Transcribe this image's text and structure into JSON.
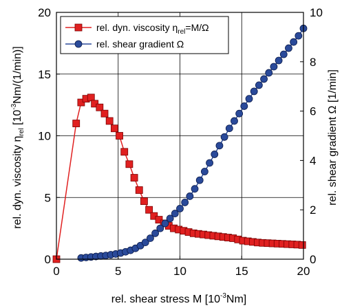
{
  "chart_data": {
    "type": "line",
    "title": "",
    "xlabel": {
      "pre": "rel. shear stress M [10",
      "sup": "-3",
      "post": "Nm]"
    },
    "ylabel_left": {
      "pre": "rel. dyn. viscosity η",
      "sub": "rel",
      "mid": " [10",
      "sup": "-3",
      "post": "Nm/(1/min)]"
    },
    "ylabel_right": "rel. shear gradient Ω [1/min]",
    "xlim": [
      0,
      20
    ],
    "ylim_left": [
      0,
      20
    ],
    "ylim_right": [
      0,
      10
    ],
    "xticks": [
      "0",
      "5",
      "10",
      "15",
      "20"
    ],
    "yticks_left": [
      "0",
      "5",
      "10",
      "15",
      "20"
    ],
    "yticks_right": [
      "0",
      "2",
      "4",
      "6",
      "8",
      "10"
    ],
    "grid": true,
    "legend_position": "top-left",
    "series": [
      {
        "name": {
          "pre": "rel. dyn. viscosity η",
          "sub": "rel",
          "post": "=M/Ω"
        },
        "axis": "left",
        "color": "#e02020",
        "marker": "square",
        "x": [
          0.0,
          1.6,
          2.0,
          2.4,
          2.8,
          3.1,
          3.5,
          3.9,
          4.3,
          4.7,
          5.1,
          5.5,
          5.9,
          6.3,
          6.7,
          7.1,
          7.5,
          7.9,
          8.3,
          8.7,
          9.1,
          9.5,
          9.9,
          10.3,
          10.7,
          11.1,
          11.5,
          11.9,
          12.3,
          12.7,
          13.1,
          13.5,
          13.9,
          14.3,
          14.7,
          15.1,
          15.5,
          15.9,
          16.3,
          16.7,
          17.1,
          17.5,
          17.9,
          18.3,
          18.7,
          19.1,
          19.5,
          19.9
        ],
        "y": [
          0.0,
          11.0,
          12.7,
          13.0,
          13.1,
          12.6,
          12.3,
          11.8,
          11.2,
          10.6,
          10.0,
          8.7,
          7.7,
          6.6,
          5.6,
          4.7,
          4.0,
          3.5,
          3.2,
          2.9,
          2.7,
          2.5,
          2.4,
          2.3,
          2.2,
          2.1,
          2.05,
          2.0,
          1.95,
          1.9,
          1.85,
          1.8,
          1.75,
          1.7,
          1.6,
          1.5,
          1.45,
          1.4,
          1.35,
          1.32,
          1.3,
          1.28,
          1.26,
          1.24,
          1.22,
          1.2,
          1.18,
          1.15
        ]
      },
      {
        "name": {
          "pre": "rel. shear gradient Ω",
          "sub": "",
          "post": ""
        },
        "axis": "right",
        "color": "#2a4a9a",
        "marker": "circle",
        "x": [
          2.0,
          2.4,
          2.8,
          3.2,
          3.6,
          4.0,
          4.4,
          4.8,
          5.2,
          5.6,
          6.0,
          6.4,
          6.8,
          7.2,
          7.6,
          8.0,
          8.4,
          8.8,
          9.2,
          9.6,
          10.0,
          10.4,
          10.8,
          11.2,
          11.6,
          12.0,
          12.4,
          12.8,
          13.2,
          13.6,
          14.0,
          14.4,
          14.8,
          15.2,
          15.6,
          16.0,
          16.4,
          16.8,
          17.2,
          17.6,
          18.0,
          18.4,
          18.8,
          19.2,
          19.6,
          20.0
        ],
        "y": [
          0.05,
          0.07,
          0.09,
          0.11,
          0.13,
          0.15,
          0.18,
          0.21,
          0.25,
          0.3,
          0.36,
          0.44,
          0.55,
          0.68,
          0.85,
          1.05,
          1.25,
          1.45,
          1.65,
          1.85,
          2.05,
          2.3,
          2.55,
          2.85,
          3.2,
          3.55,
          3.9,
          4.25,
          4.6,
          4.95,
          5.3,
          5.6,
          5.9,
          6.2,
          6.5,
          6.8,
          7.05,
          7.3,
          7.55,
          7.8,
          8.05,
          8.3,
          8.55,
          8.8,
          9.05,
          9.35
        ]
      }
    ]
  }
}
